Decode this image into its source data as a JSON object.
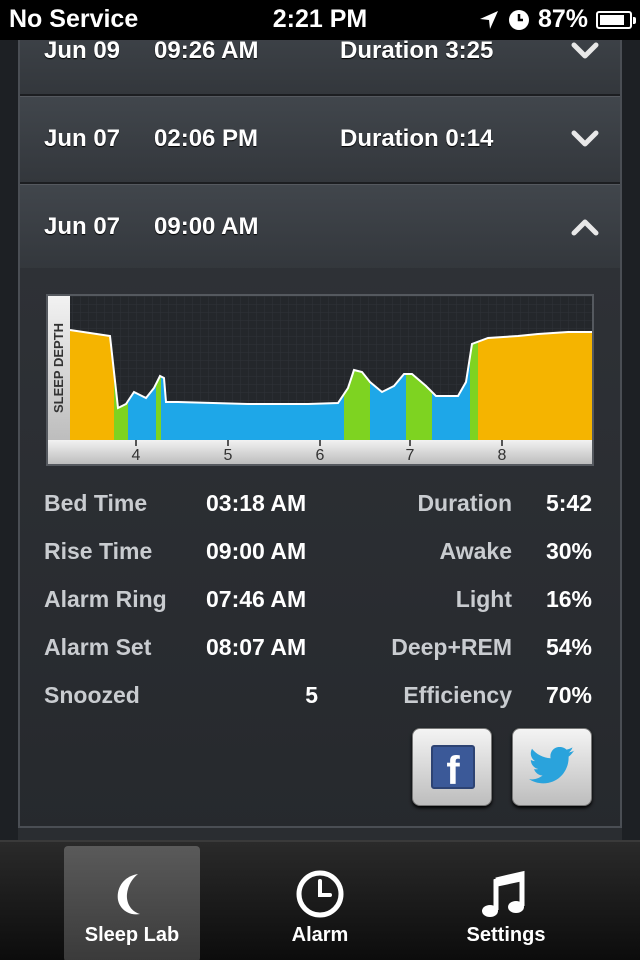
{
  "status_bar": {
    "carrier": "No Service",
    "time": "2:21 PM",
    "battery": "87%",
    "battery_level": 0.87
  },
  "sessions": [
    {
      "date": "Jun 09",
      "time": "09:26 AM",
      "duration": "Duration 3:25",
      "expanded": false
    },
    {
      "date": "Jun 07",
      "time": "02:06 PM",
      "duration": "Duration 0:14",
      "expanded": false
    },
    {
      "date": "Jun 07",
      "time": "09:00 AM",
      "duration": "",
      "expanded": true
    }
  ],
  "chart_data": {
    "type": "area",
    "ylabel": "SLEEP DEPTH",
    "xticks": [
      "4",
      "5",
      "6",
      "7",
      "8"
    ],
    "colors": {
      "awake": "#f5b400",
      "light": "#7ed321",
      "deep": "#1ea7e8"
    }
  },
  "stats_left": [
    {
      "label": "Bed Time",
      "value": "03:18 AM"
    },
    {
      "label": "Rise Time",
      "value": "09:00 AM"
    },
    {
      "label": "Alarm Ring",
      "value": "07:46 AM"
    },
    {
      "label": "Alarm Set",
      "value": "08:07 AM"
    },
    {
      "label": "Snoozed",
      "value": "5"
    }
  ],
  "stats_right": [
    {
      "label": "Duration",
      "value": "5:42"
    },
    {
      "label": "Awake",
      "value": "30%"
    },
    {
      "label": "Light",
      "value": "16%"
    },
    {
      "label": "Deep+REM",
      "value": "54%"
    },
    {
      "label": "Efficiency",
      "value": "70%"
    }
  ],
  "share": {
    "facebook_glyph": "f"
  },
  "tabs": [
    {
      "label": "Sleep Lab",
      "icon": "moon-icon",
      "active": true
    },
    {
      "label": "Alarm",
      "icon": "clock-icon",
      "active": false
    },
    {
      "label": "Settings",
      "icon": "music-note-icon",
      "active": false
    }
  ]
}
